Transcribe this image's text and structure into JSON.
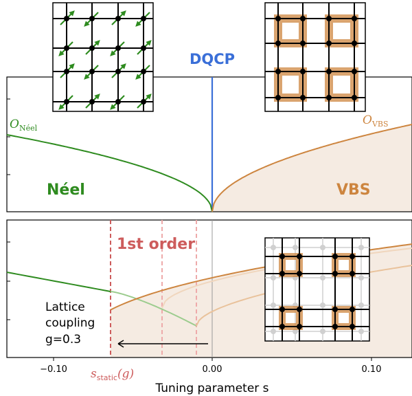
{
  "colors": {
    "neel": "#2e8b1f",
    "vbs": "#cd853f",
    "dqcp": "#3a6fd8",
    "first_order": "#cd5c5c",
    "vbs_fill": "#f5ebe2"
  },
  "top": {
    "dqcp_label": "DQCP",
    "neel_order_label": "O",
    "neel_order_sub": "Néel",
    "vbs_order_label": "O",
    "vbs_order_sub": "VBS",
    "neel_phase_label": "Néel",
    "vbs_phase_label": "VBS"
  },
  "bottom": {
    "first_order_label": "1st order",
    "lattice_line1": "Lattice",
    "lattice_line2": "coupling",
    "lattice_line3": "g=0.3",
    "s_static_main": "s",
    "s_static_sub": "static",
    "s_static_arg": "(g)"
  },
  "x_axis": {
    "label": "Tuning parameter s",
    "ticks": [
      "−0.10",
      "0.00",
      "0.10"
    ]
  },
  "icons": [
    "spin-lattice-icon",
    "vbs-plaquette-icon",
    "distorted-lattice-icon"
  ]
}
